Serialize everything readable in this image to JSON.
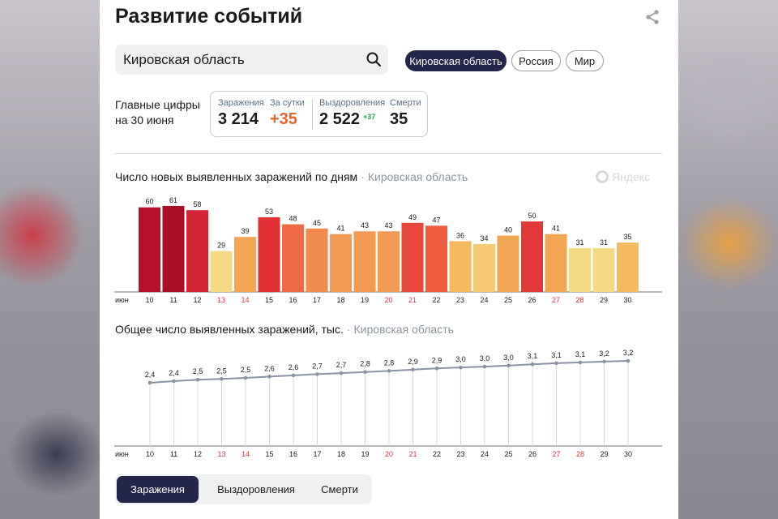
{
  "page": {
    "title": "Развитие событий"
  },
  "search": {
    "value": "Кировская область"
  },
  "region_buttons": [
    {
      "label": "Кировская область",
      "active": true
    },
    {
      "label": "Россия",
      "active": false
    },
    {
      "label": "Мир",
      "active": false
    }
  ],
  "summary": {
    "label_line1": "Главные цифры",
    "label_line2": "на 30 июня",
    "infections_label": "Заражения",
    "infections_value": "3 214",
    "per_day_label": "За сутки",
    "per_day_value": "+35",
    "recovered_label": "Выздоровления",
    "recovered_value": "2 522",
    "recovered_delta": "+37",
    "deaths_label": "Смерти",
    "deaths_value": "35"
  },
  "chart1": {
    "title": "Число новых выявленных заражений по дням",
    "region": "Кировская область"
  },
  "chart2": {
    "title": "Общее число выявленных заражений, тыс.",
    "region": "Кировская область"
  },
  "watermark": "Яндекс",
  "chart_data": [
    {
      "type": "bar",
      "title": "Число новых выявленных заражений по дням",
      "x_prefix": "июн",
      "categories": [
        "10",
        "11",
        "12",
        "13",
        "14",
        "15",
        "16",
        "17",
        "18",
        "19",
        "20",
        "21",
        "22",
        "23",
        "24",
        "25",
        "26",
        "27",
        "28",
        "29",
        "30"
      ],
      "weekend": [
        false,
        false,
        false,
        true,
        true,
        false,
        false,
        false,
        false,
        false,
        true,
        true,
        false,
        false,
        false,
        false,
        false,
        true,
        true,
        false,
        false
      ],
      "values": [
        60,
        61,
        58,
        29,
        39,
        53,
        48,
        45,
        41,
        43,
        43,
        49,
        47,
        36,
        34,
        40,
        50,
        41,
        31,
        31,
        35
      ],
      "colors": [
        "#b5112a",
        "#a80f26",
        "#d42535",
        "#f6d985",
        "#f2a553",
        "#e03232",
        "#ef6b45",
        "#f08a4e",
        "#f29a54",
        "#f29a54",
        "#f29a54",
        "#e9463c",
        "#ef5d40",
        "#f5b95e",
        "#f6ca72",
        "#f2a553",
        "#e03a38",
        "#f2a553",
        "#f6d985",
        "#f6d985",
        "#f5b95e"
      ],
      "ylim": [
        0,
        65
      ]
    },
    {
      "type": "line",
      "title": "Общее число выявленных заражений, тыс.",
      "x_prefix": "июн",
      "categories": [
        "10",
        "11",
        "12",
        "13",
        "14",
        "15",
        "16",
        "17",
        "18",
        "19",
        "20",
        "21",
        "22",
        "23",
        "24",
        "25",
        "26",
        "27",
        "28",
        "29",
        "30"
      ],
      "values": [
        2.4,
        2.4,
        2.5,
        2.5,
        2.5,
        2.6,
        2.6,
        2.7,
        2.7,
        2.8,
        2.8,
        2.9,
        2.9,
        3.0,
        3.0,
        3.0,
        3.1,
        3.1,
        3.1,
        3.2,
        3.2
      ],
      "labels": [
        "2,4",
        "2,4",
        "2,5",
        "2,5",
        "2,5",
        "2,6",
        "2,6",
        "2,7",
        "2,7",
        "2,8",
        "2,8",
        "2,9",
        "2,9",
        "3,0",
        "3,0",
        "3,0",
        "3,1",
        "3,1",
        "3,1",
        "3,2",
        "3,2"
      ],
      "exact_values": [
        2.366,
        2.427,
        2.485,
        2.514,
        2.553,
        2.606,
        2.654,
        2.699,
        2.74,
        2.783,
        2.826,
        2.875,
        2.922,
        2.958,
        2.992,
        3.032,
        3.082,
        3.123,
        3.154,
        3.185,
        3.214
      ],
      "line_color": "#8a93a6"
    }
  ],
  "bottom_tabs": [
    {
      "label": "Заражения",
      "active": true
    },
    {
      "label": "Выздоровления",
      "active": false
    },
    {
      "label": "Смерти",
      "active": false
    }
  ]
}
